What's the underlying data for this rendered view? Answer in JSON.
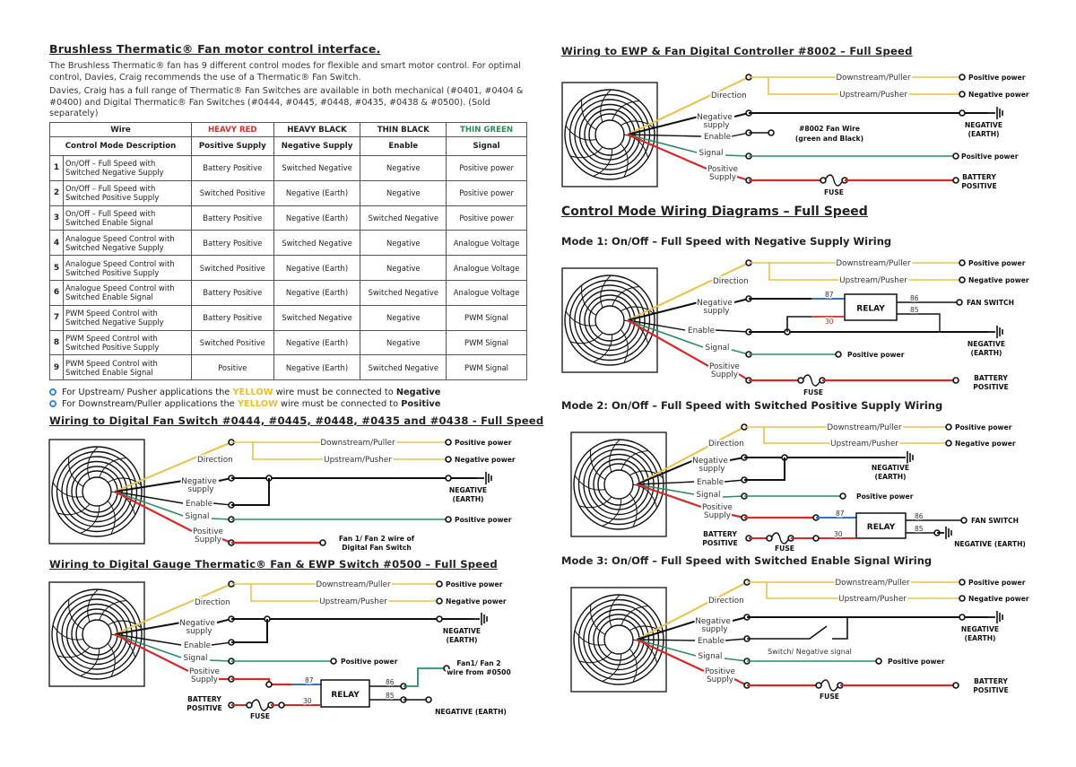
{
  "left": {
    "title": "Brushless Thermatic® Fan motor control interface.",
    "intro1": "The Brushless Thermatic® fan has 9 different control modes for flexible and smart motor control. For optimal control, Davies, Craig recommends the use of a Thermatic® Fan Switch.",
    "intro2": "Davies, Craig has a full range of Thermatic® Fan Switches are available in both mechanical (#0401, #0404 & #0400) and Digital Thermatic® Fan Switches (#0444, #0445, #0448, #0435, #0438 & #0500). (Sold separately)",
    "table": {
      "wire_header": "Wire",
      "wire_colors": [
        "HEAVY RED",
        "HEAVY BLACK",
        "THIN BLACK",
        "THIN GREEN"
      ],
      "wire_color_hex": [
        "#d03030",
        "#222222",
        "#222222",
        "#2e8b57"
      ],
      "desc_header": "Control Mode Description",
      "functions": [
        "Positive Supply",
        "Negative Supply",
        "Enable",
        "Signal"
      ],
      "rows": [
        [
          "1",
          "On/Off – Full Speed with\nSwitched Negative Supply",
          "Battery Positive",
          "Switched Negative",
          "Negative",
          "Positive power"
        ],
        [
          "2",
          "On/Off – Full Speed with\nSwitched Positive Supply",
          "Switched Positive",
          "Negative (Earth)",
          "Negative",
          "Positive power"
        ],
        [
          "3",
          "On/Off – Full Speed with\nSwitched Enable Signal",
          "Battery Positive",
          "Negative (Earth)",
          "Switched Negative",
          "Positive power"
        ],
        [
          "4",
          "Analogue Speed Control with\nSwitched Negative Supply",
          "Battery Positive",
          "Switched Negative",
          "Negative",
          "Analogue Voltage"
        ],
        [
          "5",
          "Analogue Speed Control with\nSwitched Positive Supply",
          "Switched Positive",
          "Negative (Earth)",
          "Negative",
          "Analogue Voltage"
        ],
        [
          "6",
          "Analogue Speed Control with\nSwitched Enable Signal",
          "Battery Positive",
          "Negative (Earth)",
          "Switched Negative",
          "Analogue Voltage"
        ],
        [
          "7",
          "PWM Speed Control with\nSwitched Negative Supply",
          "Battery Positive",
          "Switched Negative",
          "Negative",
          "PWM Signal"
        ],
        [
          "8",
          "PWM Speed Control with\nSwitched Positive Supply",
          "Switched Positive",
          "Negative (Earth)",
          "Negative",
          "PWM Signal"
        ],
        [
          "9",
          "PWM Speed Control with\nSwitched Enable Signal",
          "Positive",
          "Negative (Earth)",
          "Switched Negative",
          "PWM Signal"
        ]
      ]
    },
    "notes": [
      {
        "pre": "For Upstream/ Pusher applications the ",
        "hl": "YELLOW",
        "mid": " wire must be connected to ",
        "bold": "Negative"
      },
      {
        "pre": "For Downstream/Puller applications the ",
        "hl": "YELLOW",
        "mid": " wire must be connected to ",
        "bold": "Positive"
      }
    ],
    "heading_switch": "Wiring to Digital Fan Switch #0444, #0445, #0448, #0435 and #0438 - Full Speed",
    "heading_gauge": "Wiring to Digital Gauge Thermatic® Fan & EWP Switch #0500 – Full Speed"
  },
  "right": {
    "heading_8002": "Wiring to EWP & Fan Digital Controller #8002 – Full Speed",
    "heading_modes": "Control Mode Wiring Diagrams – Full Speed",
    "mode1": "Mode 1: On/Off – Full Speed with Negative Supply Wiring",
    "mode2": "Mode 2: On/Off – Full Speed with Switched Positive Supply Wiring",
    "mode3": "Mode 3: On/Off – Full Speed with Switched Enable Signal Wiring"
  },
  "labels": {
    "direction": "Direction",
    "downstream": "Downstream/Puller",
    "upstream": "Upstream/Pusher",
    "negative": "Negative",
    "supply_lc": "supply",
    "enable": "Enable",
    "signal": "Signal",
    "positive": "Positive",
    "supply": "Supply",
    "positive_power": "Positive power",
    "negative_power": "Negative power",
    "negative_caps": "NEGATIVE",
    "earth": "(EARTH)",
    "negative_earth": "NEGATIVE (EARTH)",
    "battery": "BATTERY",
    "positive_caps": "POSITIVE",
    "fuse": "FUSE",
    "relay": "RELAY",
    "fan_switch": "FAN SWITCH",
    "t87": "87",
    "t86": "86",
    "t85": "85",
    "t30": "30",
    "fan_wire_switch_1": "Fan 1/ Fan 2 wire of",
    "fan_wire_switch_2": "Digital Fan Switch",
    "fan_wire_0500_1": "Fan1/ Fan 2",
    "fan_wire_0500_2": "wire from #0500",
    "fan_wire_8002_1": "#8002 Fan Wire",
    "fan_wire_8002_2": "(green and Black)",
    "switch_neg": "Switch/ Negative signal"
  },
  "colors": {
    "yellow": "#e6c24a",
    "black": "#111111",
    "green": "#2f8a66",
    "red": "#d42a2a",
    "blue": "#3a6fc0",
    "note_bullet": "#3a8ad0"
  }
}
